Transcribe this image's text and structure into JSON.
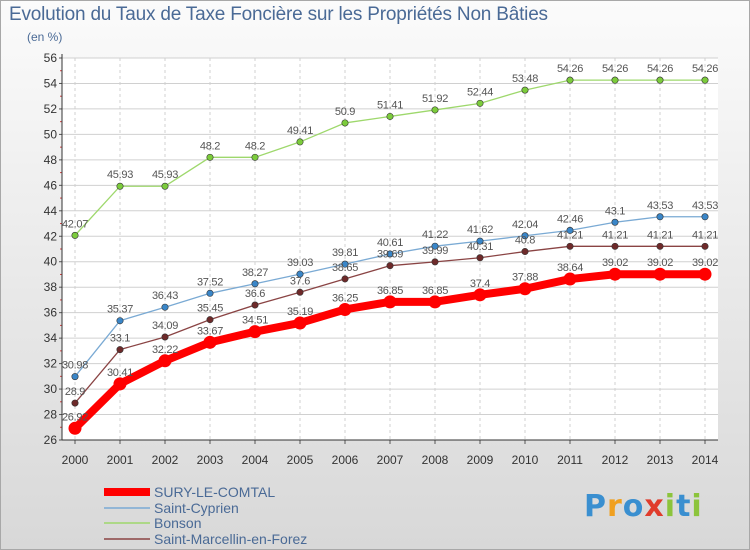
{
  "header": {
    "title": "Evolution du Taux de Taxe Foncière sur les Propriétés Non Bâties",
    "subtitle": "(en %)"
  },
  "logo": {
    "text": "Proxiti",
    "letters": [
      {
        "ch": "P",
        "color": "#3a8fd0"
      },
      {
        "ch": "r",
        "color": "#f0a020"
      },
      {
        "ch": "o",
        "color": "#3a8fd0"
      },
      {
        "ch": "x",
        "color": "#e03c2c"
      },
      {
        "ch": "i",
        "color": "#8cc43c"
      },
      {
        "ch": "t",
        "color": "#3a8fd0"
      },
      {
        "ch": "i",
        "color": "#8cc43c"
      }
    ]
  },
  "chart_data": {
    "type": "line",
    "title": "Evolution du Taux de Taxe Foncière sur les Propriétés Non Bâties",
    "ylabel": "(en %)",
    "xlabel": "",
    "ylim": [
      26,
      56
    ],
    "yticks": [
      26,
      28,
      30,
      32,
      34,
      36,
      38,
      40,
      42,
      44,
      46,
      48,
      50,
      52,
      54,
      56
    ],
    "x": [
      "2000",
      "2001",
      "2002",
      "2003",
      "2004",
      "2005",
      "2006",
      "2007",
      "2008",
      "2009",
      "2010",
      "2011",
      "2012",
      "2013",
      "2014"
    ],
    "grid": true,
    "series": [
      {
        "name": "SURY-LE-COMTAL",
        "color": "#ff0000",
        "thick": true,
        "values": [
          26.92,
          30.41,
          32.22,
          33.67,
          34.51,
          35.19,
          36.25,
          36.85,
          36.85,
          37.4,
          37.88,
          38.64,
          39.02,
          39.02,
          39.02
        ],
        "labels": [
          "26.92",
          "30.41",
          "32.22",
          "33.67",
          "34.51",
          "35.19",
          "36.25",
          "36.85",
          "36.85",
          "37.4",
          "37.88",
          "38.64",
          "39.02",
          "39.02",
          "39.02"
        ]
      },
      {
        "name": "Saint-Cyprien",
        "color": "#7aaad4",
        "marker": "#3a86c8",
        "values": [
          30.98,
          35.37,
          36.43,
          37.52,
          38.27,
          39.03,
          39.81,
          40.61,
          41.22,
          41.62,
          42.04,
          42.46,
          43.1,
          43.53,
          43.53
        ],
        "labels": [
          "30.98",
          "35.37",
          "36.43",
          "37.52",
          "38.27",
          "39.03",
          "39.81",
          "40.61",
          "41.22",
          "41.62",
          "42.04",
          "42.46",
          "43.1",
          "43.53",
          "43.53"
        ]
      },
      {
        "name": "Bonson",
        "color": "#9ed86c",
        "marker": "#7ccc3c",
        "values": [
          42.07,
          45.93,
          45.93,
          48.2,
          48.2,
          49.41,
          50.9,
          51.41,
          51.92,
          52.44,
          53.48,
          54.26,
          54.26,
          54.26,
          54.26
        ],
        "labels": [
          "42.07",
          "45.93",
          "45.93",
          "48.2",
          "48.2",
          "49.41",
          "50.9",
          "51.41",
          "51.92",
          "52.44",
          "53.48",
          "54.26",
          "54.26",
          "54.26",
          "54.26"
        ]
      },
      {
        "name": "Saint-Marcellin-en-Forez",
        "color": "#8a4444",
        "marker": "#6e2a2a",
        "values": [
          28.9,
          33.1,
          34.09,
          35.45,
          36.6,
          37.6,
          38.65,
          39.69,
          39.99,
          40.31,
          40.8,
          41.21,
          41.21,
          41.21,
          41.21
        ],
        "labels": [
          "28.9",
          "33.1",
          "34.09",
          "35.45",
          "36.6",
          "37.6",
          "38.65",
          "39.69",
          "39.99",
          "40.31",
          "40.8",
          "41.21",
          "41.21",
          "41.21",
          "41.21"
        ]
      }
    ]
  }
}
